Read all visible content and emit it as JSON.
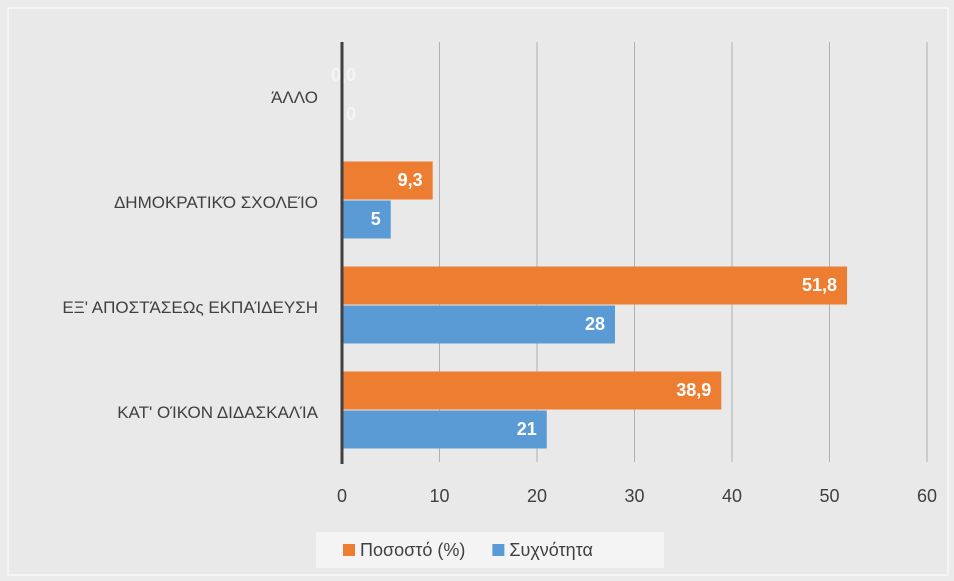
{
  "chart_data": {
    "type": "bar",
    "orientation": "horizontal",
    "categories": [
      "ΆΛΛΟ",
      "ΔΗΜΟΚΡΑΤΙΚΌ ΣΧΟΛΕΊΟ",
      "ΕΞ' ΑΠΟΣΤΆΣΕΩς ΕΚΠΑΊΔΕΥΣΗ",
      "ΚΑΤ' ΟΊΚΟΝ ΔΙΔΑΣΚΑΛΊΑ"
    ],
    "series": [
      {
        "name": "Ποσοστό (%)",
        "color": "#ed7d31",
        "values": [
          0,
          9.3,
          51.8,
          38.9
        ],
        "value_labels": [
          "0,0",
          "9,3",
          "51,8",
          "38,9"
        ]
      },
      {
        "name": "Συχνότητα",
        "color": "#5b9bd5",
        "values": [
          0,
          5,
          28,
          21
        ]
      }
    ],
    "xlim": [
      0,
      60
    ],
    "xticks": [
      0,
      10,
      20,
      30,
      40,
      50,
      60
    ],
    "grid": true,
    "legend": "bottom"
  }
}
